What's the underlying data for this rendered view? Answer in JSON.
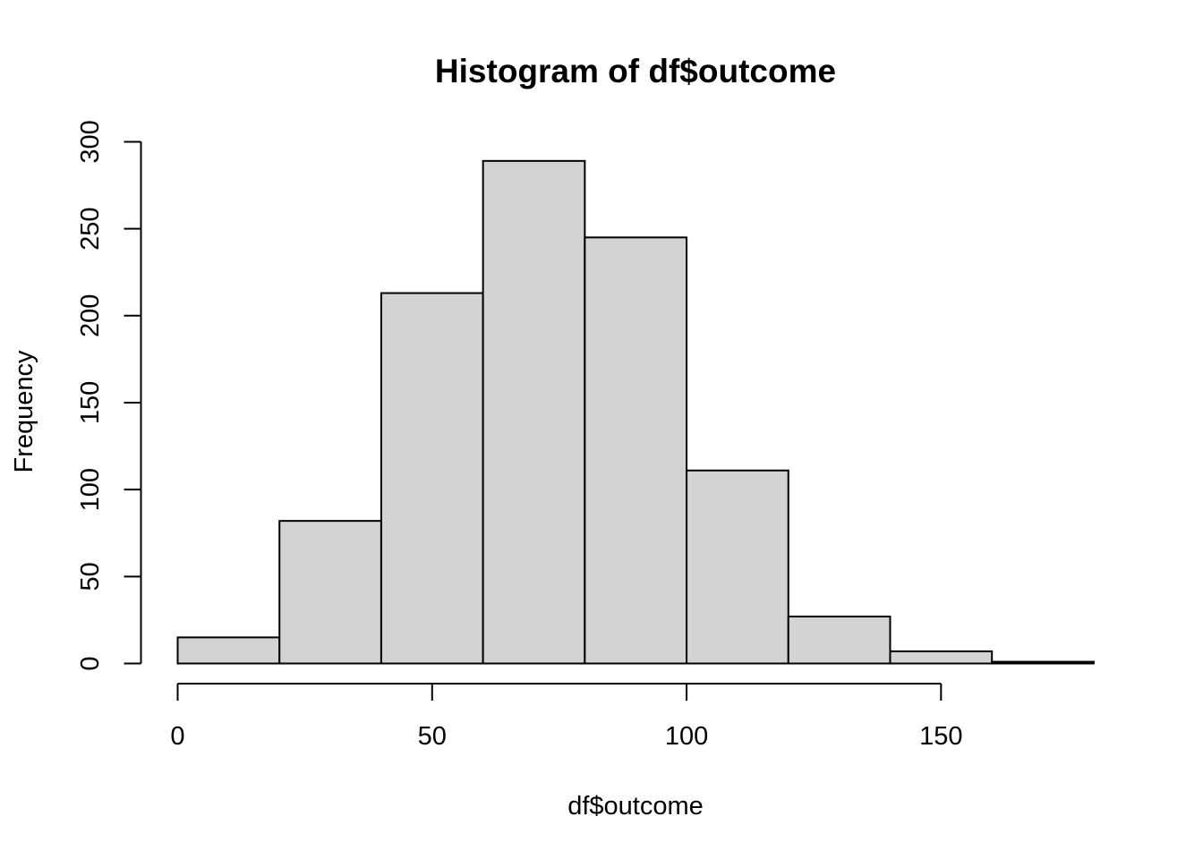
{
  "chart_data": {
    "type": "bar",
    "title": "Histogram of df$outcome",
    "xlabel": "df$outcome",
    "ylabel": "Frequency",
    "bins": [
      {
        "start": 0,
        "end": 20,
        "count": 15
      },
      {
        "start": 20,
        "end": 40,
        "count": 82
      },
      {
        "start": 40,
        "end": 60,
        "count": 213
      },
      {
        "start": 60,
        "end": 80,
        "count": 289
      },
      {
        "start": 80,
        "end": 100,
        "count": 245
      },
      {
        "start": 100,
        "end": 120,
        "count": 111
      },
      {
        "start": 120,
        "end": 140,
        "count": 27
      },
      {
        "start": 140,
        "end": 160,
        "count": 7
      },
      {
        "start": 160,
        "end": 180,
        "count": 1
      }
    ],
    "x_ticks": [
      0,
      50,
      100,
      150
    ],
    "y_ticks": [
      0,
      50,
      100,
      150,
      200,
      250,
      300
    ],
    "xlim": [
      0,
      180
    ],
    "ylim": [
      0,
      300
    ],
    "bar_color": "#d3d3d3",
    "border_color": "#000000",
    "grid": false
  }
}
